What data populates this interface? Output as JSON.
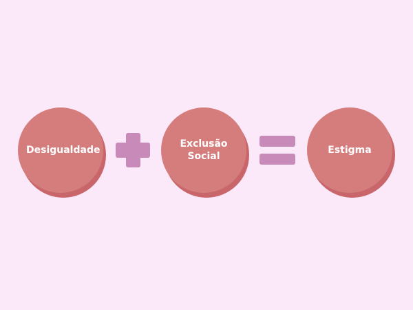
{
  "diagram": {
    "terms": [
      {
        "label": "Desigualdade"
      },
      {
        "label": "Exclusão Social"
      },
      {
        "label": "Estigma"
      }
    ],
    "operators": [
      "plus",
      "equals"
    ],
    "colors": {
      "background": "#fbe8f8",
      "circle": "#d47d7c",
      "circle_shadow": "#c9666b",
      "operator": "#c88ab8",
      "text": "#ffffff"
    }
  }
}
